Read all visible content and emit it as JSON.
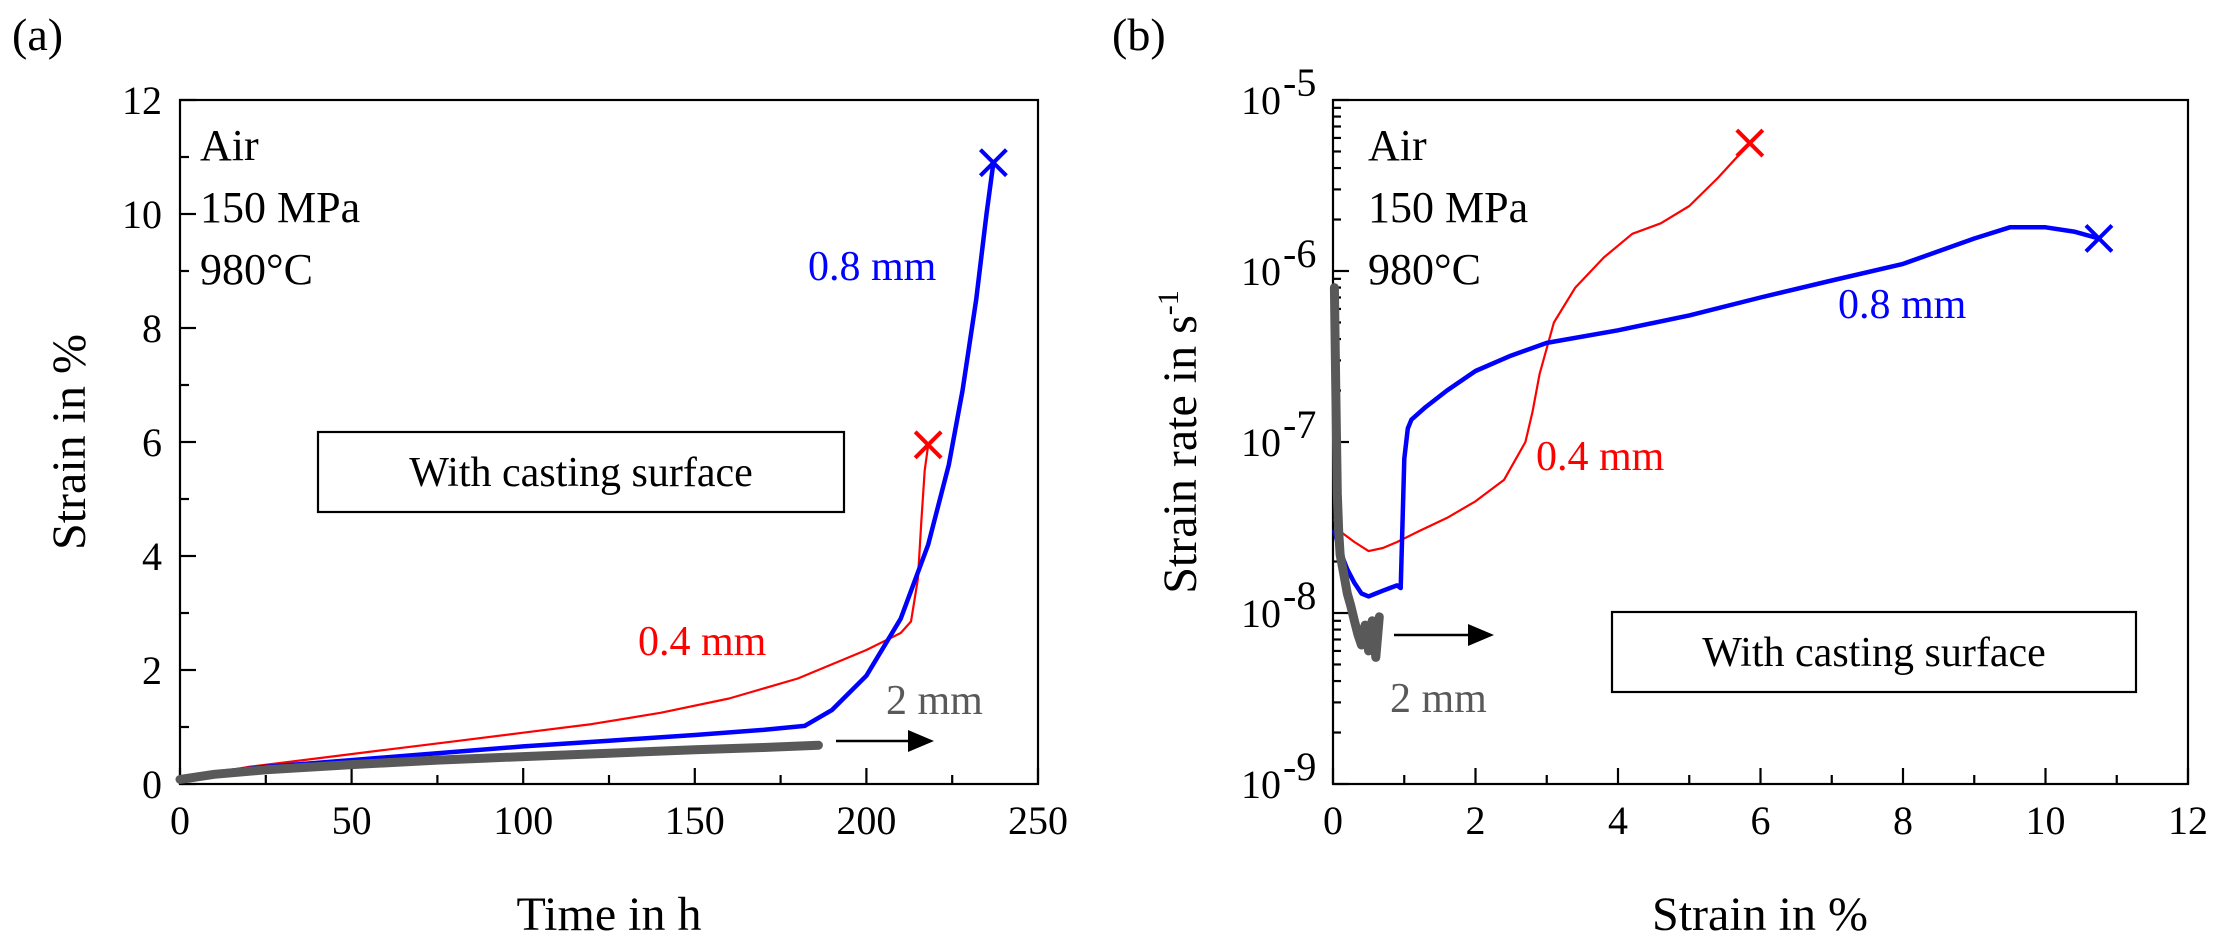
{
  "chart_data": [
    {
      "id": "a",
      "type": "line",
      "panel_label": "(a)",
      "xlabel": "Time in h",
      "ylabel": "Strain in %",
      "xlim": [
        0,
        250
      ],
      "ylim": [
        0,
        12
      ],
      "xticks": [
        "0",
        "50",
        "100",
        "150",
        "200",
        "250"
      ],
      "yticks": [
        "0",
        "2",
        "4",
        "6",
        "8",
        "10",
        "12"
      ],
      "annotations": [
        "Air",
        "150 MPa",
        "980°C"
      ],
      "box_label": "With casting surface",
      "series": [
        {
          "name": "0.4 mm",
          "color": "#ff0000",
          "fracture_marker": "X",
          "x": [
            0,
            10,
            20,
            40,
            60,
            80,
            100,
            120,
            140,
            160,
            180,
            200,
            210,
            213,
            215,
            216,
            217,
            218
          ],
          "y": [
            0.1,
            0.2,
            0.3,
            0.45,
            0.6,
            0.75,
            0.9,
            1.05,
            1.25,
            1.5,
            1.85,
            2.35,
            2.65,
            2.85,
            3.6,
            4.6,
            5.5,
            5.95
          ]
        },
        {
          "name": "0.8 mm",
          "color": "#0000ff",
          "fracture_marker": "X",
          "x": [
            0,
            10,
            25,
            50,
            75,
            100,
            125,
            150,
            170,
            182,
            190,
            200,
            210,
            218,
            224,
            228,
            232,
            235,
            237
          ],
          "y": [
            0.1,
            0.2,
            0.3,
            0.42,
            0.54,
            0.66,
            0.76,
            0.86,
            0.95,
            1.02,
            1.3,
            1.9,
            2.9,
            4.2,
            5.6,
            6.9,
            8.5,
            10.0,
            10.9
          ]
        },
        {
          "name": "2 mm",
          "color": "#595959",
          "arrow": true,
          "x": [
            0,
            10,
            25,
            50,
            75,
            100,
            125,
            150,
            170,
            186
          ],
          "y": [
            0.08,
            0.17,
            0.25,
            0.34,
            0.42,
            0.48,
            0.54,
            0.6,
            0.64,
            0.68
          ]
        }
      ]
    },
    {
      "id": "b",
      "type": "line",
      "panel_label": "(b)",
      "xlabel": "Strain in %",
      "ylabel": "Strain rate in s",
      "ylabel_superscript": "-1",
      "yscale": "log",
      "xlim": [
        0,
        12
      ],
      "ylim": [
        1e-09,
        1e-05
      ],
      "xticks": [
        "0",
        "2",
        "4",
        "6",
        "8",
        "10",
        "12"
      ],
      "yticks": [
        {
          "base": "10",
          "exp": "-9"
        },
        {
          "base": "10",
          "exp": "-8"
        },
        {
          "base": "10",
          "exp": "-7"
        },
        {
          "base": "10",
          "exp": "-6"
        },
        {
          "base": "10",
          "exp": "-5"
        }
      ],
      "annotations": [
        "Air",
        "150 MPa",
        "980°C"
      ],
      "box_label": "With casting surface",
      "series": [
        {
          "name": "0.4 mm",
          "color": "#ff0000",
          "fracture_marker": "X",
          "x": [
            0.02,
            0.1,
            0.3,
            0.5,
            0.7,
            0.9,
            1.2,
            1.6,
            2.0,
            2.4,
            2.7,
            2.8,
            2.9,
            3.1,
            3.4,
            3.8,
            4.2,
            4.6,
            5.0,
            5.4,
            5.85
          ],
          "y": [
            3.5e-08,
            3e-08,
            2.6e-08,
            2.3e-08,
            2.4e-08,
            2.6e-08,
            3e-08,
            3.6e-08,
            4.5e-08,
            6e-08,
            1e-07,
            1.5e-07,
            2.5e-07,
            5e-07,
            8e-07,
            1.2e-06,
            1.65e-06,
            1.9e-06,
            2.4e-06,
            3.5e-06,
            5.6e-06
          ]
        },
        {
          "name": "0.8 mm",
          "color": "#0000ff",
          "fracture_marker": "X",
          "x": [
            0.02,
            0.1,
            0.2,
            0.3,
            0.4,
            0.5,
            0.6,
            0.7,
            0.8,
            0.9,
            0.95,
            1.0,
            1.05,
            1.1,
            1.3,
            1.6,
            2.0,
            2.5,
            3.0,
            4.0,
            5.0,
            6.0,
            7.0,
            8.0,
            9.0,
            9.5,
            10.0,
            10.4,
            10.75
          ],
          "y": [
            3e-08,
            2.3e-08,
            1.8e-08,
            1.5e-08,
            1.3e-08,
            1.25e-08,
            1.3e-08,
            1.35e-08,
            1.4e-08,
            1.45e-08,
            1.4e-08,
            8e-08,
            1.2e-07,
            1.35e-07,
            1.6e-07,
            2e-07,
            2.6e-07,
            3.2e-07,
            3.8e-07,
            4.5e-07,
            5.5e-07,
            7e-07,
            8.8e-07,
            1.1e-06,
            1.55e-06,
            1.8e-06,
            1.8e-06,
            1.7e-06,
            1.55e-06
          ]
        },
        {
          "name": "2 mm",
          "color": "#595959",
          "arrow": true,
          "x": [
            0.02,
            0.04,
            0.06,
            0.08,
            0.1,
            0.15,
            0.2,
            0.25,
            0.3,
            0.35,
            0.4,
            0.45,
            0.5,
            0.55,
            0.6,
            0.65
          ],
          "y": [
            8e-07,
            2e-07,
            5e-08,
            3e-08,
            2.2e-08,
            1.7e-08,
            1.3e-08,
            1.1e-08,
            9e-09,
            7.5e-09,
            6.5e-09,
            8.5e-09,
            6e-09,
            9e-09,
            5.5e-09,
            9.5e-09
          ]
        }
      ]
    }
  ]
}
